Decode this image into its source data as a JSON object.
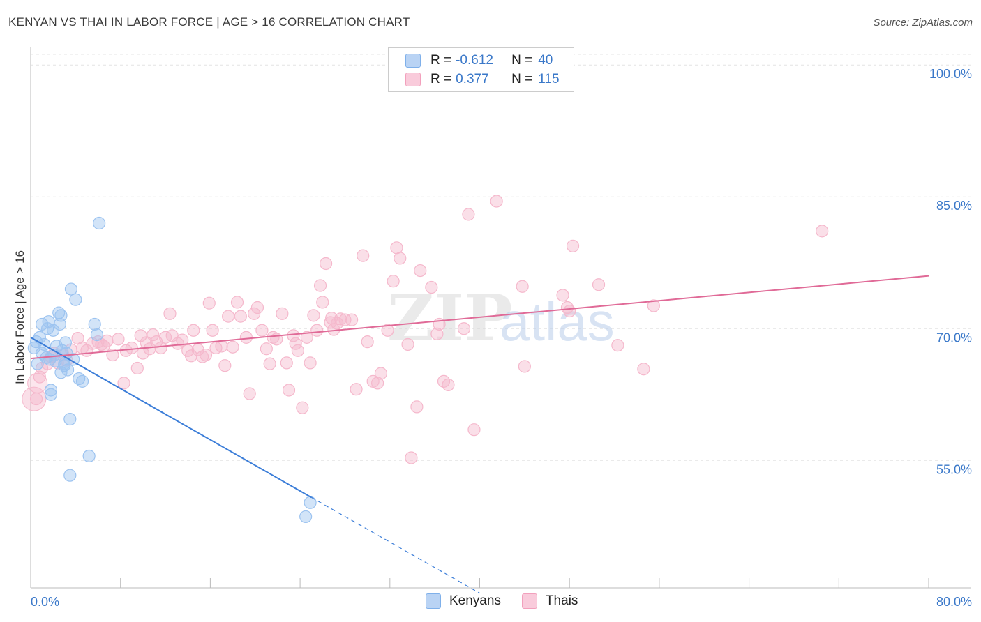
{
  "title": "KENYAN VS THAI IN LABOR FORCE | AGE > 16 CORRELATION CHART",
  "source": "Source: ZipAtlas.com",
  "watermark": "ZIPatlas",
  "legend_top": {
    "rows": [
      {
        "r_label": "R =",
        "r_value": "-0.612",
        "n_label": "N =",
        "n_value": "40",
        "color": "#7fb0ea"
      },
      {
        "r_label": "R =",
        "r_value": "0.377",
        "n_label": "N =",
        "n_value": "115",
        "color": "#f2a0bc"
      }
    ]
  },
  "legend_bottom": {
    "items": [
      {
        "label": "Kenyans",
        "color": "#7fb0ea"
      },
      {
        "label": "Thais",
        "color": "#f2a0bc"
      }
    ]
  },
  "chart_data": {
    "type": "scatter",
    "title": "KENYAN VS THAI IN LABOR FORCE | AGE > 16 CORRELATION CHART",
    "xlabel": "",
    "ylabel": "In Labor Force | Age > 16",
    "xlim": [
      0,
      80
    ],
    "ylim": [
      40.5,
      102
    ],
    "x_tick_labels": [
      "0.0%",
      "80.0%"
    ],
    "y_ticks": [
      55,
      70,
      85,
      100
    ],
    "y_tick_labels": [
      "55.0%",
      "70.0%",
      "85.0%",
      "100.0%"
    ],
    "grid": true,
    "series": [
      {
        "name": "Kenyans",
        "color": "#3b7dd8",
        "fill": "#9cc3f0",
        "trend": {
          "x": [
            0,
            25
          ],
          "y": [
            69.0,
            50.8
          ],
          "dashed_to": [
            40,
            39.9
          ]
        },
        "points": [
          [
            0.3,
            67.8
          ],
          [
            0.5,
            68.5
          ],
          [
            0.6,
            66.0
          ],
          [
            0.8,
            69.0
          ],
          [
            1.0,
            67.2
          ],
          [
            1.0,
            70.5
          ],
          [
            1.2,
            68.2
          ],
          [
            1.4,
            66.7
          ],
          [
            1.5,
            70.0
          ],
          [
            1.6,
            70.8
          ],
          [
            1.7,
            66.5
          ],
          [
            1.8,
            63.0
          ],
          [
            1.8,
            62.5
          ],
          [
            2.0,
            69.8
          ],
          [
            2.1,
            67.0
          ],
          [
            2.2,
            66.3
          ],
          [
            2.3,
            68.0
          ],
          [
            2.5,
            71.8
          ],
          [
            2.6,
            70.5
          ],
          [
            2.7,
            71.5
          ],
          [
            2.7,
            65.0
          ],
          [
            2.8,
            67.5
          ],
          [
            3.0,
            65.8
          ],
          [
            3.1,
            68.4
          ],
          [
            3.2,
            67.2
          ],
          [
            3.3,
            65.3
          ],
          [
            3.5,
            59.7
          ],
          [
            3.6,
            74.5
          ],
          [
            3.8,
            66.5
          ],
          [
            4.0,
            73.3
          ],
          [
            4.3,
            64.3
          ],
          [
            4.6,
            64.0
          ],
          [
            5.2,
            55.5
          ],
          [
            5.7,
            70.5
          ],
          [
            5.9,
            69.3
          ],
          [
            6.1,
            82.0
          ],
          [
            3.5,
            53.3
          ],
          [
            3.0,
            66.0
          ],
          [
            24.9,
            50.2
          ],
          [
            24.5,
            48.6
          ]
        ]
      },
      {
        "name": "Thais",
        "color": "#e06a97",
        "fill": "#f5b8cc",
        "trend": {
          "x": [
            0,
            80
          ],
          "y": [
            66.6,
            76.0
          ]
        },
        "points": [
          [
            0.5,
            62.0
          ],
          [
            0.8,
            64.5
          ],
          [
            1.0,
            65.5
          ],
          [
            1.5,
            66.0
          ],
          [
            1.8,
            66.8
          ],
          [
            2.1,
            67.2
          ],
          [
            2.4,
            66.1
          ],
          [
            2.9,
            67.0
          ],
          [
            3.2,
            66.4
          ],
          [
            3.6,
            67.6
          ],
          [
            4.2,
            68.9
          ],
          [
            4.6,
            67.8
          ],
          [
            5.0,
            67.5
          ],
          [
            5.5,
            68.3
          ],
          [
            6.0,
            68.5
          ],
          [
            6.3,
            68.2
          ],
          [
            6.8,
            68.6
          ],
          [
            7.3,
            67.0
          ],
          [
            7.8,
            68.8
          ],
          [
            8.3,
            63.8
          ],
          [
            8.5,
            67.5
          ],
          [
            9.0,
            67.8
          ],
          [
            9.5,
            65.5
          ],
          [
            10.0,
            67.2
          ],
          [
            10.3,
            68.4
          ],
          [
            10.6,
            67.7
          ],
          [
            10.9,
            69.3
          ],
          [
            11.2,
            68.5
          ],
          [
            11.6,
            67.8
          ],
          [
            12.0,
            69.0
          ],
          [
            12.4,
            71.7
          ],
          [
            12.6,
            69.2
          ],
          [
            13.1,
            68.3
          ],
          [
            13.5,
            68.7
          ],
          [
            14.0,
            67.5
          ],
          [
            14.3,
            66.9
          ],
          [
            14.5,
            69.8
          ],
          [
            14.9,
            67.6
          ],
          [
            15.3,
            66.8
          ],
          [
            15.6,
            67.0
          ],
          [
            15.9,
            72.9
          ],
          [
            16.2,
            69.8
          ],
          [
            16.5,
            67.8
          ],
          [
            17.0,
            68.0
          ],
          [
            17.3,
            65.8
          ],
          [
            17.6,
            71.4
          ],
          [
            18.0,
            67.9
          ],
          [
            18.4,
            73.0
          ],
          [
            18.7,
            71.4
          ],
          [
            19.2,
            69.0
          ],
          [
            19.5,
            62.6
          ],
          [
            19.9,
            71.7
          ],
          [
            20.2,
            72.4
          ],
          [
            20.6,
            69.8
          ],
          [
            21.0,
            67.7
          ],
          [
            21.3,
            66.0
          ],
          [
            21.6,
            69.0
          ],
          [
            21.9,
            68.8
          ],
          [
            22.4,
            71.7
          ],
          [
            22.8,
            66.1
          ],
          [
            23.0,
            63.0
          ],
          [
            23.4,
            69.2
          ],
          [
            23.6,
            68.3
          ],
          [
            23.8,
            67.5
          ],
          [
            24.2,
            61.0
          ],
          [
            24.6,
            69.0
          ],
          [
            24.9,
            66.1
          ],
          [
            25.2,
            71.5
          ],
          [
            25.5,
            69.8
          ],
          [
            25.8,
            74.9
          ],
          [
            26.0,
            73.0
          ],
          [
            26.3,
            77.4
          ],
          [
            26.7,
            70.7
          ],
          [
            27.0,
            69.9
          ],
          [
            27.3,
            70.6
          ],
          [
            27.6,
            71.1
          ],
          [
            28.0,
            71.0
          ],
          [
            28.6,
            71.0
          ],
          [
            29.0,
            63.1
          ],
          [
            29.6,
            78.3
          ],
          [
            30.0,
            68.5
          ],
          [
            30.5,
            64.0
          ],
          [
            30.9,
            63.8
          ],
          [
            31.2,
            64.9
          ],
          [
            31.8,
            69.8
          ],
          [
            32.3,
            75.4
          ],
          [
            32.6,
            79.2
          ],
          [
            32.9,
            78.0
          ],
          [
            33.6,
            68.2
          ],
          [
            33.9,
            55.3
          ],
          [
            34.4,
            61.1
          ],
          [
            34.7,
            76.6
          ],
          [
            35.7,
            74.7
          ],
          [
            36.2,
            69.4
          ],
          [
            36.4,
            70.5
          ],
          [
            36.8,
            64.0
          ],
          [
            37.2,
            63.6
          ],
          [
            38.6,
            70.0
          ],
          [
            39.0,
            83.0
          ],
          [
            39.5,
            58.5
          ],
          [
            41.5,
            84.5
          ],
          [
            43.8,
            74.8
          ],
          [
            44.0,
            65.7
          ],
          [
            47.4,
            73.8
          ],
          [
            47.8,
            72.4
          ],
          [
            48.0,
            72.0
          ],
          [
            48.3,
            79.4
          ],
          [
            50.6,
            75.0
          ],
          [
            52.3,
            68.1
          ],
          [
            54.6,
            65.4
          ],
          [
            55.5,
            72.6
          ],
          [
            70.5,
            81.1
          ],
          [
            6.5,
            68.0
          ],
          [
            9.8,
            69.2
          ],
          [
            26.8,
            71.2
          ]
        ]
      }
    ]
  }
}
